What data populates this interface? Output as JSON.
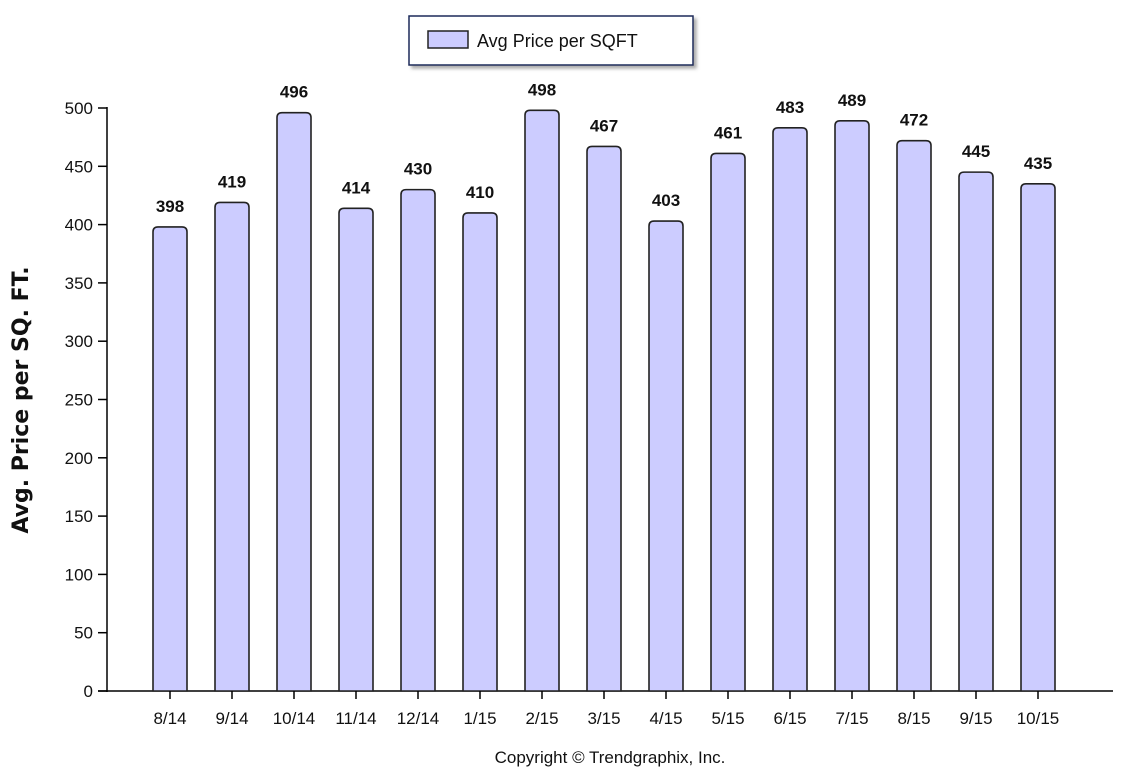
{
  "chart_data": {
    "type": "bar",
    "categories": [
      "8/14",
      "9/14",
      "10/14",
      "11/14",
      "12/14",
      "1/15",
      "2/15",
      "3/15",
      "4/15",
      "5/15",
      "6/15",
      "7/15",
      "8/15",
      "9/15",
      "10/15"
    ],
    "series": [
      {
        "name": "Avg Price per SQFT",
        "values": [
          398,
          419,
          496,
          414,
          430,
          410,
          498,
          467,
          403,
          461,
          483,
          489,
          472,
          445,
          435
        ]
      }
    ],
    "title": "",
    "xlabel": "",
    "ylabel": "Avg. Price per SQ. FT.",
    "ylim": [
      0,
      500
    ],
    "yticks": [
      0,
      50,
      100,
      150,
      200,
      250,
      300,
      350,
      400,
      450,
      500
    ],
    "grid": false,
    "legend_position": "top-center",
    "data_labels": true,
    "colors": {
      "bar_fill": "#ccccff",
      "bar_stroke": "#222222",
      "axis": "#000000"
    }
  },
  "footer": {
    "copyright": "Copyright © Trendgraphix, Inc."
  }
}
